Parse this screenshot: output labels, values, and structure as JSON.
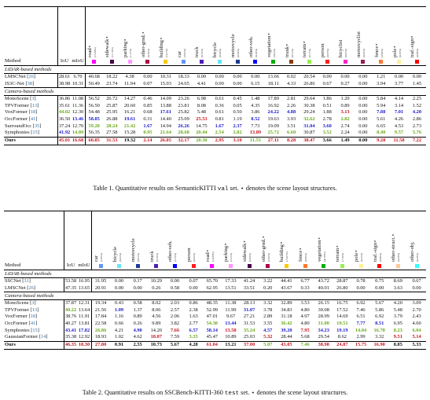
{
  "table1": {
    "method_header": "Method",
    "metric_headers": [
      "IoU",
      "mIoU"
    ],
    "classes": [
      {
        "name": "road",
        "freq": "(15.30%)",
        "color": "#ff00ff"
      },
      {
        "name": "sidewalk",
        "freq": "(11.13%)",
        "color": "#4b004b"
      },
      {
        "name": "parking",
        "freq": "(1.12%)",
        "color": "#ff96ff"
      },
      {
        "name": "other-grnd.",
        "freq": "(0.56%)",
        "color": "#af004b"
      },
      {
        "name": "building",
        "freq": "(14.1%)",
        "color": "#ffc800"
      },
      {
        "name": "car",
        "freq": "(3.92%)",
        "color": "#6496f5"
      },
      {
        "name": "truck",
        "freq": "(0.16%)",
        "color": "#501eb4"
      },
      {
        "name": "bicycle",
        "freq": "(0.03%)",
        "color": "#64e6f5"
      },
      {
        "name": "motorcycle",
        "freq": "(0.03%)",
        "color": "#1e3c96"
      },
      {
        "name": "other-veh.",
        "freq": "(0.20%)",
        "color": "#0000ff"
      },
      {
        "name": "vegetation",
        "freq": "(39.3%)",
        "color": "#00af00"
      },
      {
        "name": "trunk",
        "freq": "(0.51%)",
        "color": "#873c00"
      },
      {
        "name": "terrain",
        "freq": "(9.17%)",
        "color": "#96f050"
      },
      {
        "name": "person",
        "freq": "(0.07%)",
        "color": "#ff1e1e"
      },
      {
        "name": "bicyclist",
        "freq": "(0.07%)",
        "color": "#ff28c8"
      },
      {
        "name": "motorcyclist",
        "freq": "(0.05%)",
        "color": "#961e5a"
      },
      {
        "name": "fence",
        "freq": "(3.90%)",
        "color": "#ff7832"
      },
      {
        "name": "pole",
        "freq": "(0.29%)",
        "color": "#fff096"
      },
      {
        "name": "traf.-sign",
        "freq": "(0.08%)",
        "color": "#ff0000"
      }
    ],
    "lidar_label": "LiDAR-based methods",
    "camera_label": "Camera-based methods",
    "lidar_rows": [
      {
        "name": "LMSCNet",
        "ref": "26",
        "v": [
          "28.61",
          "6.70",
          "40.68",
          "18.22",
          "4.38",
          "0.00",
          "10.31",
          "18.33",
          "0.00",
          "0.00",
          "0.00",
          "0.00",
          "13.66",
          "0.02",
          "20.54",
          "0.00",
          "0.00",
          "0.00",
          "1.21",
          "0.00",
          "0.00"
        ]
      },
      {
        "name": "JS3C-Net",
        "ref": "38",
        "v": [
          "38.98",
          "10.31",
          "50.49",
          "23.74",
          "11.94",
          "0.07",
          "15.03",
          "24.65",
          "4.41",
          "0.00",
          "0.00",
          "6.15",
          "18.11",
          "4.33",
          "26.86",
          "0.67",
          "0.27",
          "0.00",
          "3.94",
          "3.77",
          "1.45"
        ]
      }
    ],
    "camera_rows": [
      {
        "name": "MonoScene",
        "ref": "3",
        "v": [
          "36.86",
          "11.08",
          "56.52",
          "26.72",
          "14.27",
          "0.46",
          "14.09",
          "23.26",
          "6.98",
          "0.61",
          "0.45",
          "1.48",
          "17.89",
          "2.81",
          "29.64",
          "1.86",
          "1.20",
          "0.00",
          "5.84",
          "4.14",
          "2.25"
        ]
      },
      {
        "name": "TPVFormer",
        "ref": "13",
        "v": [
          "35.61",
          "11.36",
          "56.50",
          "25.87",
          "20.60",
          "0.85",
          "13.88",
          "23.81",
          "8.08",
          "0.36",
          "0.05",
          "4.35",
          "16.92",
          "2.26",
          "30.38",
          "0.51",
          "0.89",
          "0.00",
          "5.94",
          "3.14",
          "1.52"
        ]
      },
      {
        "name": "VoxFormer",
        "ref": "18",
        "v": [
          "44.02",
          "12.30",
          "54.48",
          "25.95",
          "16.21",
          "0.68",
          "17.61",
          "25.82",
          "5.48",
          "0.61",
          "0.50",
          "3.86",
          "24.22",
          "4.88",
          "29.24",
          "1.88",
          "3.13",
          "0.00",
          "7.88",
          "7.01",
          "4.20"
        ]
      },
      {
        "name": "OccFormer",
        "ref": "41",
        "v": [
          "36.50",
          "13.46",
          "58.85",
          "26.88",
          "19.61",
          "0.31",
          "14.40",
          "25.09",
          "25.53",
          "0.81",
          "1.19",
          "8.52",
          "19.63",
          "3.93",
          "32.62",
          "2.78",
          "2.82",
          "0.00",
          "5.61",
          "4.26",
          "2.86"
        ]
      },
      {
        "name": "SurroundOcc",
        "ref": "35",
        "v": [
          "37.24",
          "12.70",
          "59.20",
          "28.24",
          "21.42",
          "1.67",
          "14.94",
          "26.26",
          "14.75",
          "1.67",
          "2.37",
          "7.73",
          "19.09",
          "3.51",
          "31.04",
          "3.60",
          "2.74",
          "0.00",
          "6.65",
          "4.53",
          "2.73"
        ]
      },
      {
        "name": "Symphonies",
        "ref": "15",
        "v": [
          "41.92",
          "14.89",
          "56.35",
          "27.58",
          "15.28",
          "0.95",
          "21.64",
          "28.68",
          "20.44",
          "2.54",
          "2.82",
          "13.89",
          "25.72",
          "6.60",
          "30.87",
          "3.52",
          "2.24",
          "0.00",
          "8.40",
          "9.57",
          "5.76"
        ]
      }
    ],
    "ours": {
      "name": "Ours",
      "v": [
        "45.01",
        "16.68",
        "60.85",
        "31.53",
        "19.32",
        "2.14",
        "26.05",
        "32.17",
        "20.30",
        "2.95",
        "3.10",
        "11.55",
        "27.11",
        "8.28",
        "38.47",
        "3.66",
        "1.49",
        "0.00",
        "9.28",
        "11.58",
        "7.22"
      ]
    },
    "caption_prefix": "Table 1. Quantitative results on SemanticKITTI",
    "caption_mono": "val",
    "caption_suffix": "set. ⋆ denotes the scene layout structures."
  },
  "table2": {
    "method_header": "Method",
    "metric_headers": [
      "IoU",
      "mIoU"
    ],
    "classes": [
      {
        "name": "car",
        "freq": "(2.85%)",
        "color": "#6496f5"
      },
      {
        "name": "bicycle",
        "freq": "(0.01%)",
        "color": "#64e6f5"
      },
      {
        "name": "motorcycle",
        "freq": "(0.01%)",
        "color": "#1e3c96"
      },
      {
        "name": "truck",
        "freq": "(0.16%)",
        "color": "#501eb4"
      },
      {
        "name": "other-veh.",
        "freq": "(5.75%)",
        "color": "#0000ff"
      },
      {
        "name": "person",
        "freq": "(0.02%)",
        "color": "#ff1e1e"
      },
      {
        "name": "road",
        "freq": "(14.98%)",
        "color": "#ff00ff"
      },
      {
        "name": "parking",
        "freq": "(2.31%)",
        "color": "#ff96ff"
      },
      {
        "name": "sidewalk",
        "freq": "(6.43%)",
        "color": "#4b004b"
      },
      {
        "name": "other-grnd.",
        "freq": "(2.05%)",
        "color": "#af004b"
      },
      {
        "name": "building",
        "freq": "(15.67%)",
        "color": "#ffc800"
      },
      {
        "name": "fence",
        "freq": "(0.96%)",
        "color": "#ff7832"
      },
      {
        "name": "vegetation",
        "freq": "(41.99%)",
        "color": "#00af00"
      },
      {
        "name": "terrain",
        "freq": "(7.10%)",
        "color": "#96f050"
      },
      {
        "name": "pole",
        "freq": "(0.22%)",
        "color": "#fff096"
      },
      {
        "name": "traf.-sign",
        "freq": "(0.06%)",
        "color": "#ff0000"
      },
      {
        "name": "other-struct.",
        "freq": "(4.33%)",
        "color": "#ffc896"
      },
      {
        "name": "other-obj.",
        "freq": "(0.28%)",
        "color": "#32ffff"
      }
    ],
    "lidar_label": "LiDAR-based methods",
    "camera_label": "Camera-based methods",
    "lidar_rows": [
      {
        "name": "SSCNet",
        "ref": "31",
        "v": [
          "53.58",
          "16.95",
          "31.95",
          "0.00",
          "0.17",
          "10.29",
          "0.00",
          "0.07",
          "65.70",
          "17.33",
          "41.24",
          "3.22",
          "44.41",
          "6.77",
          "43.72",
          "28.87",
          "0.78",
          "0.75",
          "8.69",
          "0.67"
        ]
      },
      {
        "name": "LMSCNet",
        "ref": "26",
        "v": [
          "47.35",
          "13.65",
          "20.91",
          "0.00",
          "0.00",
          "0.26",
          "0.58",
          "0.00",
          "62.95",
          "13.51",
          "33.51",
          "0.20",
          "43.67",
          "0.33",
          "40.01",
          "26.80",
          "0.00",
          "0.00",
          "3.63",
          "0.00"
        ]
      }
    ],
    "camera_rows": [
      {
        "name": "MonoScene",
        "ref": "3",
        "v": [
          "37.87",
          "12.31",
          "19.34",
          "0.43",
          "0.58",
          "8.02",
          "2.03",
          "0.86",
          "48.35",
          "11.38",
          "28.13",
          "3.32",
          "32.89",
          "3.53",
          "26.15",
          "16.75",
          "6.92",
          "5.67",
          "4.20",
          "3.09"
        ]
      },
      {
        "name": "TPVFormer",
        "ref": "13",
        "v": [
          "40.22",
          "13.64",
          "21.56",
          "1.09",
          "1.37",
          "8.06",
          "2.57",
          "2.38",
          "52.99",
          "11.99",
          "31.07",
          "3.78",
          "34.83",
          "4.80",
          "30.08",
          "17.52",
          "7.46",
          "5.86",
          "5.48",
          "2.70"
        ]
      },
      {
        "name": "VoxFormer",
        "ref": "18",
        "v": [
          "38.76",
          "11.91",
          "17.84",
          "1.16",
          "0.89",
          "4.56",
          "2.06",
          "1.63",
          "47.01",
          "9.67",
          "27.21",
          "2.89",
          "31.18",
          "4.97",
          "28.99",
          "14.69",
          "6.51",
          "6.92",
          "3.79",
          "2.43"
        ]
      },
      {
        "name": "OccFormer",
        "ref": "41",
        "v": [
          "40.27",
          "13.81",
          "22.58",
          "0.66",
          "0.26",
          "9.89",
          "3.82",
          "2.77",
          "54.30",
          "13.44",
          "31.53",
          "3.55",
          "36.42",
          "4.80",
          "31.00",
          "19.51",
          "7.77",
          "8.51",
          "6.95",
          "4.60"
        ]
      },
      {
        "name": "Symphonies",
        "ref": "15",
        "v": [
          "43.41",
          "17.82",
          "26.86",
          "4.21",
          "4.90",
          "14.20",
          "7.66",
          "6.57",
          "58.14",
          "13.58",
          "35.24",
          "4.57",
          "39.20",
          "7.95",
          "34.23",
          "19.19",
          "14.04",
          "16.78",
          "8.23",
          "6.04"
        ]
      },
      {
        "name": "GaussianFormer",
        "ref": "14",
        "v": [
          "35.38",
          "12.92",
          "18.93",
          "1.02",
          "4.62",
          "18.07",
          "7.59",
          "3.35",
          "45.47",
          "10.89",
          "25.03",
          "5.32",
          "28.44",
          "5.68",
          "29.54",
          "8.62",
          "2.99",
          "3.32",
          "9.51",
          "5.14"
        ]
      }
    ],
    "ours": {
      "name": "Ours",
      "v": [
        "46.35",
        "18.30",
        "27.80",
        "0.91",
        "2.55",
        "10.73",
        "5.67",
        "4.28",
        "61.04",
        "13.21",
        "37.00",
        "5.07",
        "43.05",
        "7.46",
        "38.98",
        "24.87",
        "15.75",
        "16.90",
        "8.85",
        "5.33"
      ]
    },
    "caption_prefix": "Table 2. Quantitative results on SSCBench-KITTI-360",
    "caption_mono": "test",
    "caption_suffix": "set. ⋆ denotes the scene layout structures."
  },
  "highlight_colors": {
    "best": "#c8141e",
    "second": "#1c1ccc",
    "third": "#6aaa1a"
  }
}
